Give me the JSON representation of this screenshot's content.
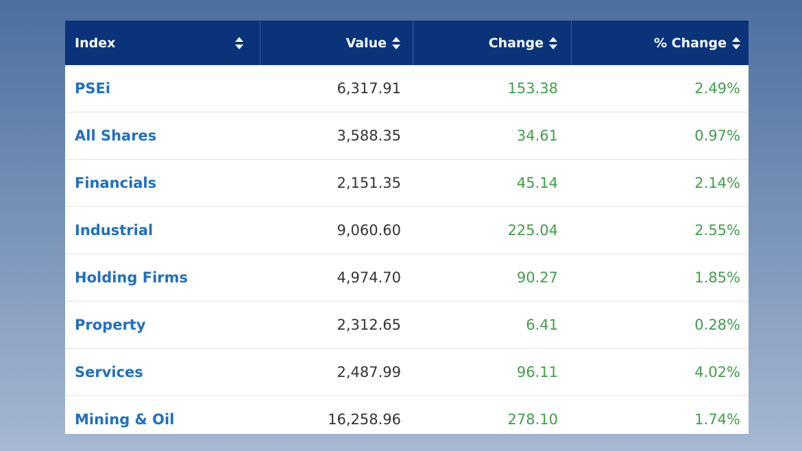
{
  "table": {
    "header": [
      "Index",
      "Value",
      "Change",
      "% Change"
    ],
    "rows": [
      [
        "PSEi",
        "6,317.91",
        "153.38",
        "2.49%"
      ],
      [
        "All Shares",
        "3,588.35",
        "34.61",
        "0.97%"
      ],
      [
        "Financials",
        "2,151.35",
        "45.14",
        "2.14%"
      ],
      [
        "Industrial",
        "9,060.60",
        "225.04",
        "2.55%"
      ],
      [
        "Holding Firms",
        "4,974.70",
        "90.27",
        "1.85%"
      ],
      [
        "Property",
        "2,312.65",
        "6.41",
        "0.28%"
      ],
      [
        "Services",
        "2,487.99",
        "96.11",
        "4.02%"
      ],
      [
        "Mining & Oil",
        "16,258.96",
        "278.10",
        "1.74%"
      ]
    ]
  }
}
